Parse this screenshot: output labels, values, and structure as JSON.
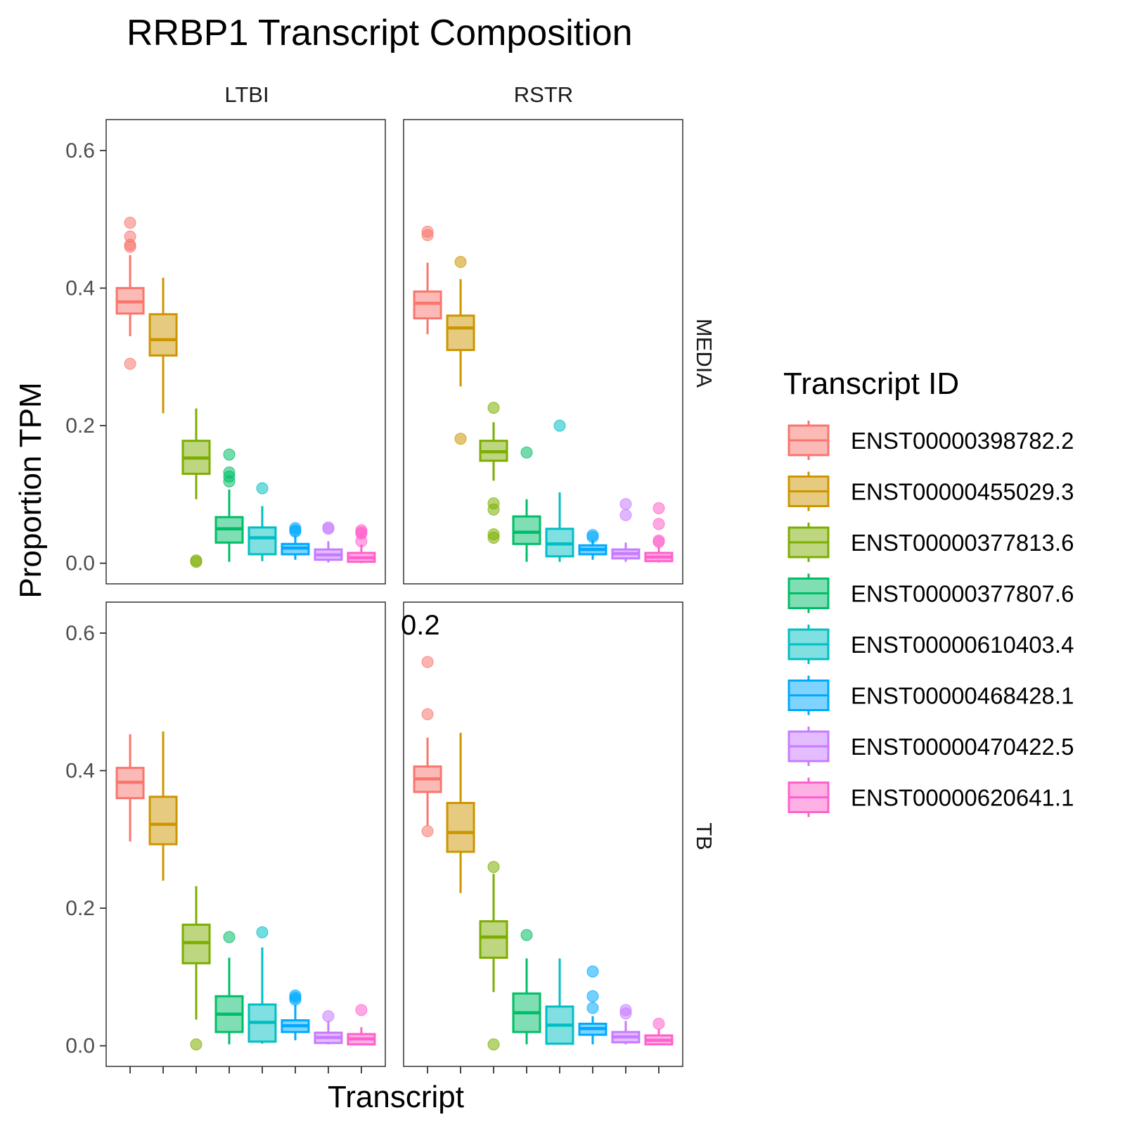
{
  "chart_data": {
    "type": "boxplot",
    "title": "RRBP1 Transcript Composition",
    "xlabel": "Transcript",
    "ylabel": "Proportion TPM",
    "ylim": [
      -0.03,
      0.645
    ],
    "yticks": [
      "0.0",
      "0.2",
      "0.4",
      "0.6"
    ],
    "grid": false,
    "legend": {
      "title": "Transcript ID",
      "position": "right"
    },
    "facet_columns": [
      "LTBI",
      "RSTR"
    ],
    "facet_rows": [
      "MEDIA",
      "TB"
    ],
    "annotation": "0.2",
    "series": [
      {
        "name": "ENST00000398782.2",
        "color": "#F8766D"
      },
      {
        "name": "ENST00000455029.3",
        "color": "#CD9600"
      },
      {
        "name": "ENST00000377813.6",
        "color": "#7CAE00"
      },
      {
        "name": "ENST00000377807.6",
        "color": "#00BE67"
      },
      {
        "name": "ENST00000610403.4",
        "color": "#00BFC4"
      },
      {
        "name": "ENST00000468428.1",
        "color": "#00A9FF"
      },
      {
        "name": "ENST00000470422.5",
        "color": "#C77CFF"
      },
      {
        "name": "ENST00000620641.1",
        "color": "#FF61CC"
      }
    ],
    "panels": [
      {
        "column": "LTBI",
        "row": "MEDIA",
        "boxes": [
          {
            "whisker_low": 0.33,
            "q1": 0.363,
            "median": 0.38,
            "q3": 0.4,
            "whisker_high": 0.448,
            "outliers": [
              0.495,
              0.475,
              0.463,
              0.46,
              0.29
            ]
          },
          {
            "whisker_low": 0.218,
            "q1": 0.302,
            "median": 0.325,
            "q3": 0.362,
            "whisker_high": 0.415,
            "outliers": []
          },
          {
            "whisker_low": 0.093,
            "q1": 0.13,
            "median": 0.153,
            "q3": 0.178,
            "whisker_high": 0.225,
            "outliers": [
              0.004,
              0.002
            ]
          },
          {
            "whisker_low": 0.002,
            "q1": 0.03,
            "median": 0.05,
            "q3": 0.067,
            "whisker_high": 0.107,
            "outliers": [
              0.158,
              0.132,
              0.126,
              0.119
            ]
          },
          {
            "whisker_low": 0.003,
            "q1": 0.013,
            "median": 0.037,
            "q3": 0.052,
            "whisker_high": 0.083,
            "outliers": [
              0.109
            ]
          },
          {
            "whisker_low": 0.005,
            "q1": 0.013,
            "median": 0.022,
            "q3": 0.028,
            "whisker_high": 0.04,
            "outliers": [
              0.051,
              0.048,
              0.046
            ]
          },
          {
            "whisker_low": 0.001,
            "q1": 0.005,
            "median": 0.012,
            "q3": 0.02,
            "whisker_high": 0.032,
            "outliers": [
              0.052,
              0.05
            ]
          },
          {
            "whisker_low": 0.0,
            "q1": 0.002,
            "median": 0.008,
            "q3": 0.015,
            "whisker_high": 0.027,
            "outliers": [
              0.048,
              0.045,
              0.043,
              0.032
            ]
          }
        ]
      },
      {
        "column": "RSTR",
        "row": "MEDIA",
        "boxes": [
          {
            "whisker_low": 0.333,
            "q1": 0.356,
            "median": 0.378,
            "q3": 0.395,
            "whisker_high": 0.437,
            "outliers": [
              0.482,
              0.477
            ]
          },
          {
            "whisker_low": 0.257,
            "q1": 0.31,
            "median": 0.342,
            "q3": 0.36,
            "whisker_high": 0.413,
            "outliers": [
              0.438,
              0.181
            ]
          },
          {
            "whisker_low": 0.12,
            "q1": 0.149,
            "median": 0.162,
            "q3": 0.178,
            "whisker_high": 0.205,
            "outliers": [
              0.226,
              0.087,
              0.078,
              0.042,
              0.037
            ]
          },
          {
            "whisker_low": 0.002,
            "q1": 0.028,
            "median": 0.045,
            "q3": 0.068,
            "whisker_high": 0.093,
            "outliers": [
              0.161
            ]
          },
          {
            "whisker_low": 0.002,
            "q1": 0.01,
            "median": 0.028,
            "q3": 0.05,
            "whisker_high": 0.103,
            "outliers": [
              0.2
            ]
          },
          {
            "whisker_low": 0.005,
            "q1": 0.013,
            "median": 0.02,
            "q3": 0.026,
            "whisker_high": 0.034,
            "outliers": [
              0.041,
              0.038
            ]
          },
          {
            "whisker_low": 0.002,
            "q1": 0.007,
            "median": 0.014,
            "q3": 0.02,
            "whisker_high": 0.03,
            "outliers": [
              0.086,
              0.07
            ]
          },
          {
            "whisker_low": 0.001,
            "q1": 0.003,
            "median": 0.009,
            "q3": 0.015,
            "whisker_high": 0.024,
            "outliers": [
              0.08,
              0.057,
              0.033,
              0.031
            ]
          }
        ]
      },
      {
        "column": "LTBI",
        "row": "TB",
        "boxes": [
          {
            "whisker_low": 0.297,
            "q1": 0.36,
            "median": 0.383,
            "q3": 0.404,
            "whisker_high": 0.453,
            "outliers": []
          },
          {
            "whisker_low": 0.24,
            "q1": 0.293,
            "median": 0.322,
            "q3": 0.362,
            "whisker_high": 0.457,
            "outliers": []
          },
          {
            "whisker_low": 0.038,
            "q1": 0.12,
            "median": 0.15,
            "q3": 0.176,
            "whisker_high": 0.232,
            "outliers": [
              0.002
            ]
          },
          {
            "whisker_low": 0.002,
            "q1": 0.02,
            "median": 0.046,
            "q3": 0.072,
            "whisker_high": 0.128,
            "outliers": [
              0.158
            ]
          },
          {
            "whisker_low": 0.003,
            "q1": 0.006,
            "median": 0.034,
            "q3": 0.06,
            "whisker_high": 0.143,
            "outliers": [
              0.165
            ]
          },
          {
            "whisker_low": 0.008,
            "q1": 0.02,
            "median": 0.029,
            "q3": 0.037,
            "whisker_high": 0.06,
            "outliers": [
              0.073,
              0.07,
              0.067
            ]
          },
          {
            "whisker_low": 0.002,
            "q1": 0.004,
            "median": 0.012,
            "q3": 0.019,
            "whisker_high": 0.036,
            "outliers": [
              0.043
            ]
          },
          {
            "whisker_low": 0.001,
            "q1": 0.002,
            "median": 0.01,
            "q3": 0.017,
            "whisker_high": 0.027,
            "outliers": [
              0.052
            ]
          }
        ]
      },
      {
        "column": "RSTR",
        "row": "TB",
        "boxes": [
          {
            "whisker_low": 0.32,
            "q1": 0.369,
            "median": 0.388,
            "q3": 0.406,
            "whisker_high": 0.448,
            "outliers": [
              0.558,
              0.482,
              0.312
            ]
          },
          {
            "whisker_low": 0.222,
            "q1": 0.282,
            "median": 0.31,
            "q3": 0.353,
            "whisker_high": 0.455,
            "outliers": []
          },
          {
            "whisker_low": 0.078,
            "q1": 0.128,
            "median": 0.158,
            "q3": 0.181,
            "whisker_high": 0.25,
            "outliers": [
              0.26,
              0.002
            ]
          },
          {
            "whisker_low": 0.002,
            "q1": 0.02,
            "median": 0.048,
            "q3": 0.076,
            "whisker_high": 0.127,
            "outliers": [
              0.161
            ]
          },
          {
            "whisker_low": 0.002,
            "q1": 0.003,
            "median": 0.03,
            "q3": 0.057,
            "whisker_high": 0.127,
            "outliers": []
          },
          {
            "whisker_low": 0.002,
            "q1": 0.016,
            "median": 0.025,
            "q3": 0.032,
            "whisker_high": 0.043,
            "outliers": [
              0.108,
              0.072,
              0.055
            ]
          },
          {
            "whisker_low": 0.002,
            "q1": 0.005,
            "median": 0.013,
            "q3": 0.02,
            "whisker_high": 0.036,
            "outliers": [
              0.052,
              0.047
            ]
          },
          {
            "whisker_low": 0.001,
            "q1": 0.002,
            "median": 0.008,
            "q3": 0.015,
            "whisker_high": 0.024,
            "outliers": [
              0.032
            ]
          }
        ]
      }
    ]
  }
}
